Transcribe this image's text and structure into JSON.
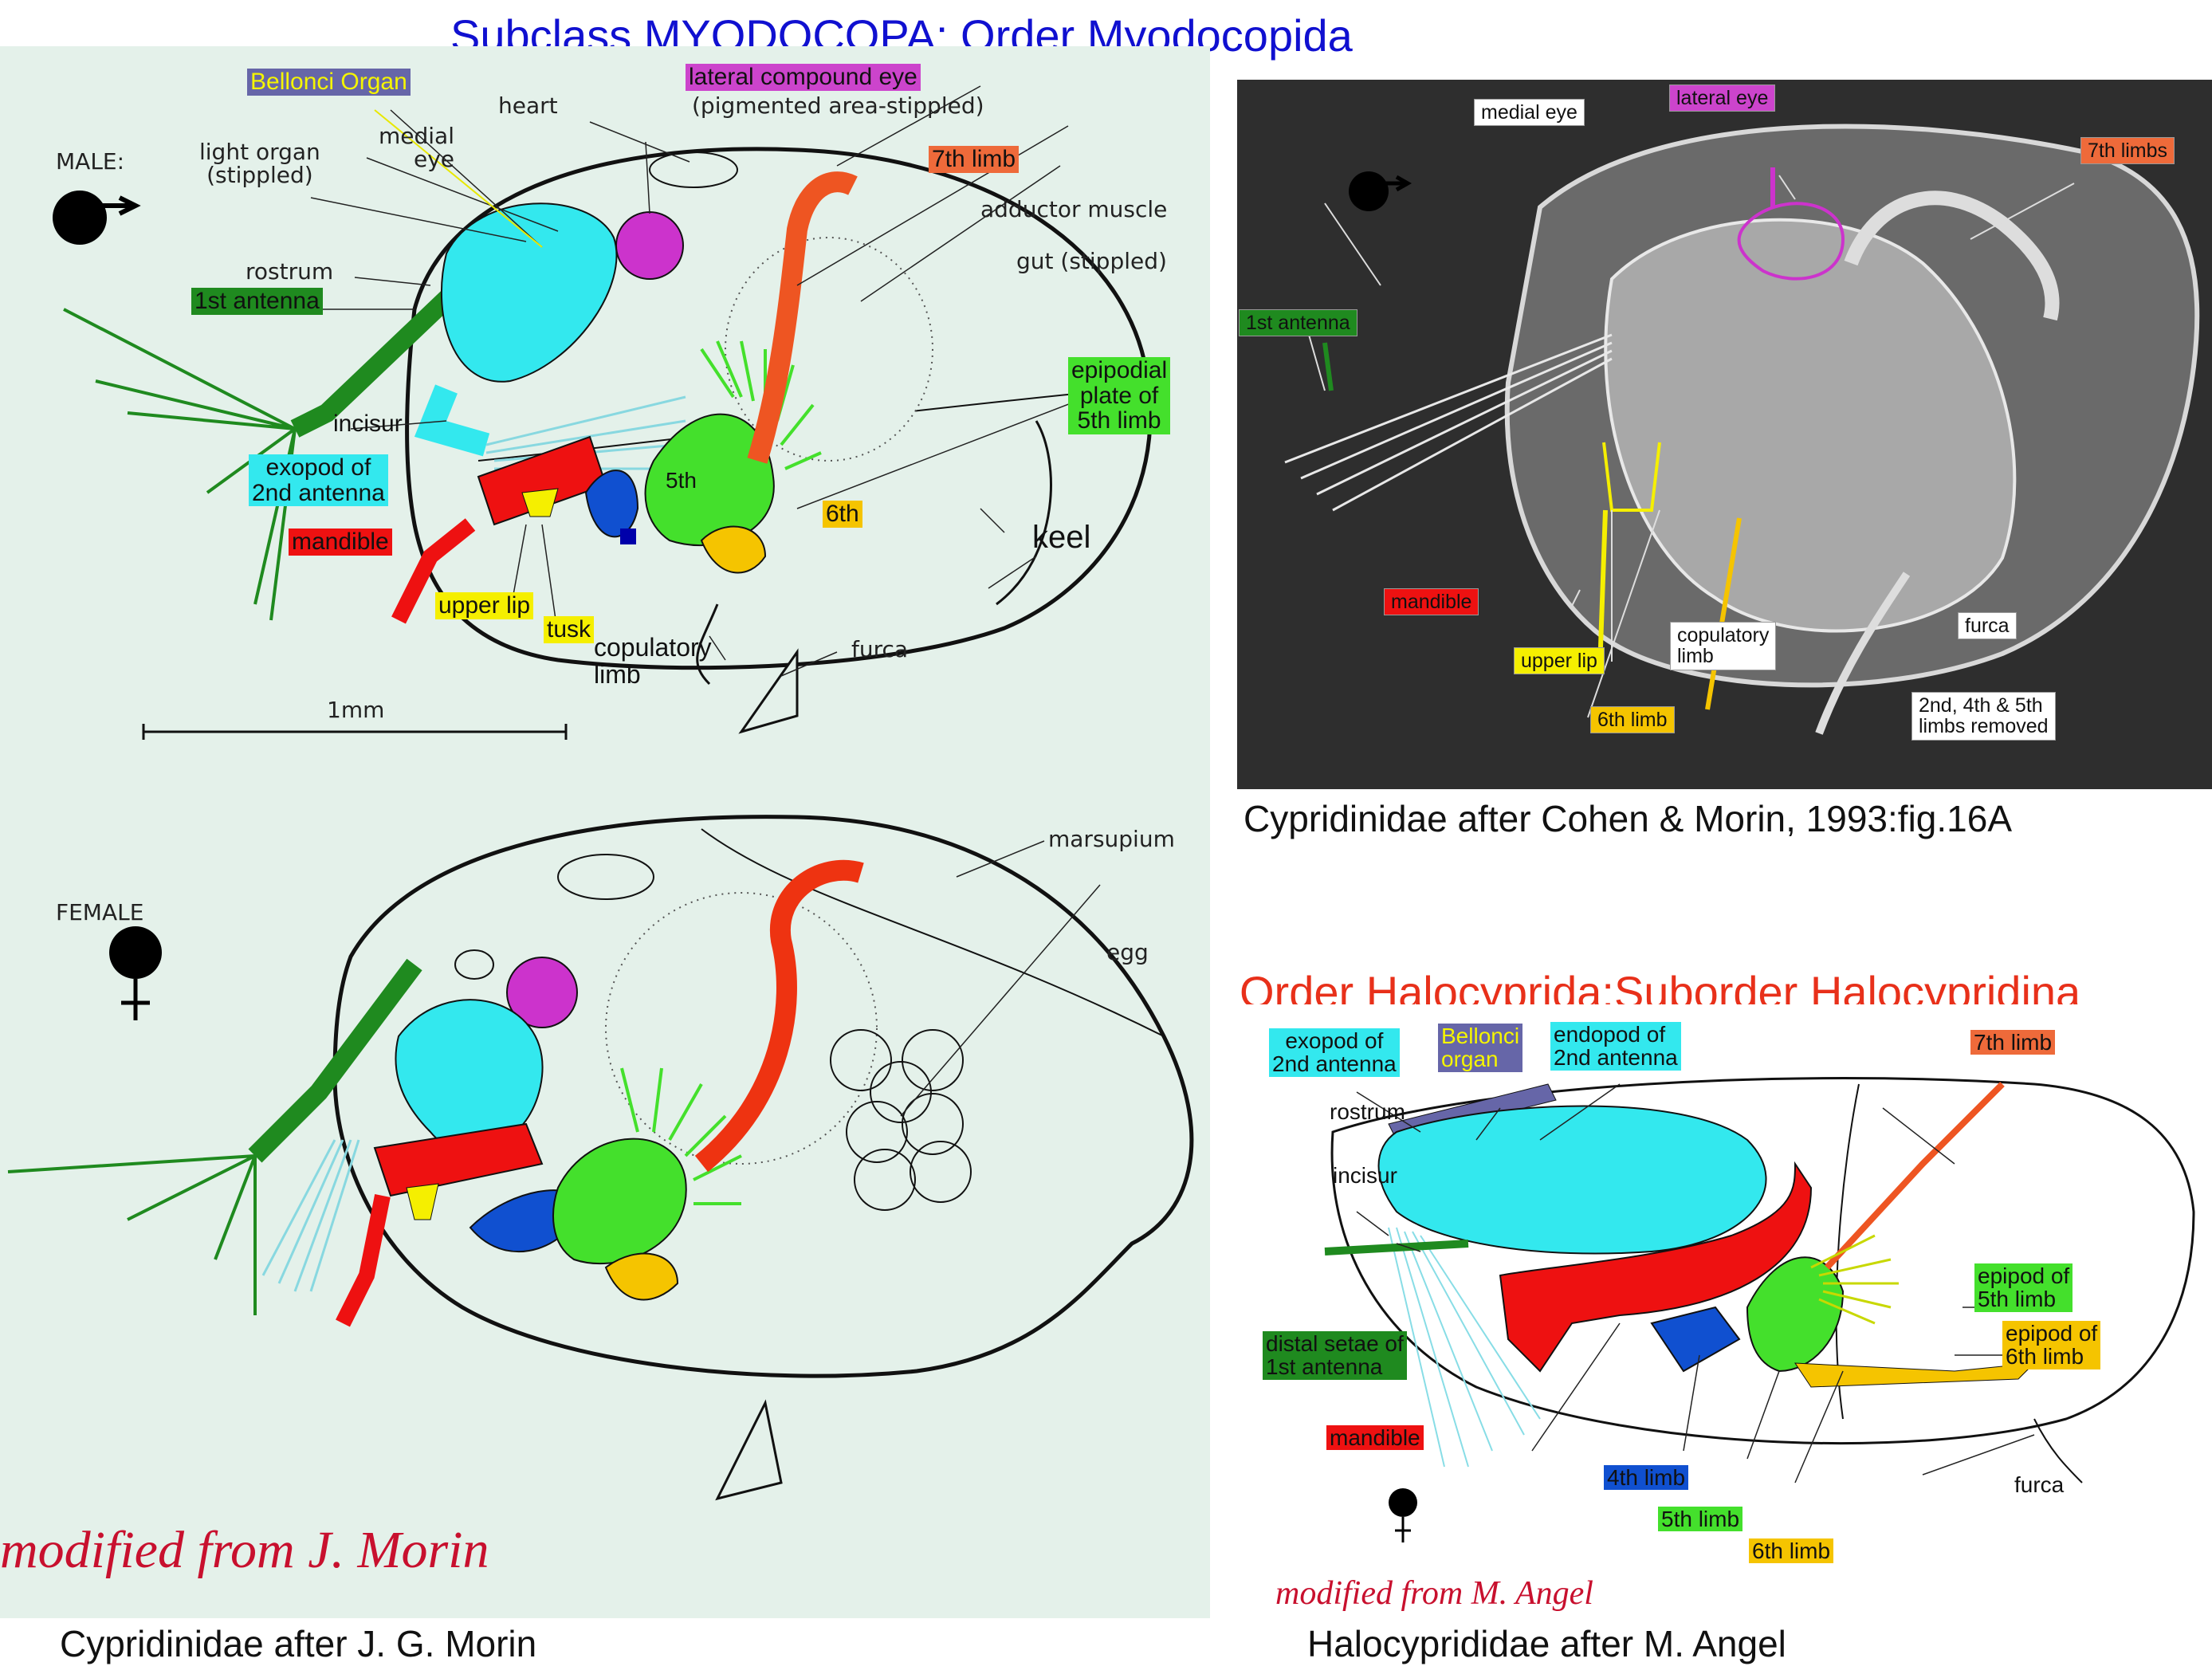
{
  "title": "Subclass MYODOCOPA: Order Myodocopida",
  "male": {
    "sex_label": "MALE:",
    "labels": {
      "bellonci": "Bellonci Organ",
      "lateral_eye": "lateral compound eye",
      "pigmented": "(pigmented area-stippled)",
      "heart": "heart",
      "medial_eye": "medial\neye",
      "light_organ": "light organ\n(stippled)",
      "seventh_limb": "7th limb",
      "adductor": "adductor muscle",
      "gut": "gut (stippled)",
      "rostrum": "rostrum",
      "first_antenna": "1st antenna",
      "epipodial": "epipodial\nplate of\n5th limb",
      "incisur": "incisur",
      "exopod": "exopod of\n2nd antenna",
      "fifth": "5th",
      "sixth": "6th",
      "mandible": "mandible",
      "keel": "keel",
      "upper_lip": "upper lip",
      "tusk": "tusk",
      "copulatory": "copulatory\nlimb",
      "furca": "furca",
      "scale": "1mm"
    }
  },
  "female": {
    "sex_label": "FEMALE",
    "labels": {
      "marsupium": "marsupium",
      "egg": "egg"
    },
    "credit": "modified from J. Morin"
  },
  "caption_morin": "Cypridinidae after J. G. Morin",
  "sem": {
    "labels": {
      "medial_eye": "medial eye",
      "lateral_eye": "lateral eye",
      "seventh_limbs": "7th limbs",
      "first_antenna": "1st antenna",
      "mandible": "mandible",
      "upper_lip": "upper lip",
      "copulatory": "copulatory\nlimb",
      "furca": "furca",
      "sixth_limb": "6th limb",
      "removed": "2nd, 4th & 5th\nlimbs removed"
    },
    "caption": "Cypridinidae after Cohen & Morin, 1993:fig.16A"
  },
  "halo": {
    "title": "Order Halocyprida:Suborder Halocypridina",
    "labels": {
      "exopod": "exopod of\n2nd antenna",
      "bellonci": "Bellonci\norgan",
      "endopod": "endopod of\n2nd antenna",
      "seventh_limb": "7th limb",
      "rostrum": "rostrum",
      "incisur": "incisur",
      "epipod5": "epipod of\n5th limb",
      "epipod6": "epipod of\n6th limb",
      "distal_setae": "distal setae of\n1st antenna",
      "mandible": "mandible",
      "fourth_limb": "4th limb",
      "furca": "furca",
      "fifth_limb": "5th limb",
      "sixth_limb": "6th limb"
    },
    "credit": "modified from M. Angel",
    "caption": "Halocyprididae after M. Angel"
  },
  "colors": {
    "title_blue": "#1010d0",
    "halo_title_red": "#e8301a",
    "credit_red": "#c8102e",
    "antenna_green": "#1f8a1f",
    "exopod_cyan": "#33e8ee",
    "mandible_red": "#ee1111",
    "limb4_blue": "#1050d0",
    "limb5_green": "#44e02c",
    "limb6_yellow": "#f5c400",
    "limb7_orange": "#ee5522",
    "eye_magenta": "#cc33cc",
    "bellonci_purple": "#6666a8",
    "upper_lip_yellow": "#f5ef00"
  }
}
